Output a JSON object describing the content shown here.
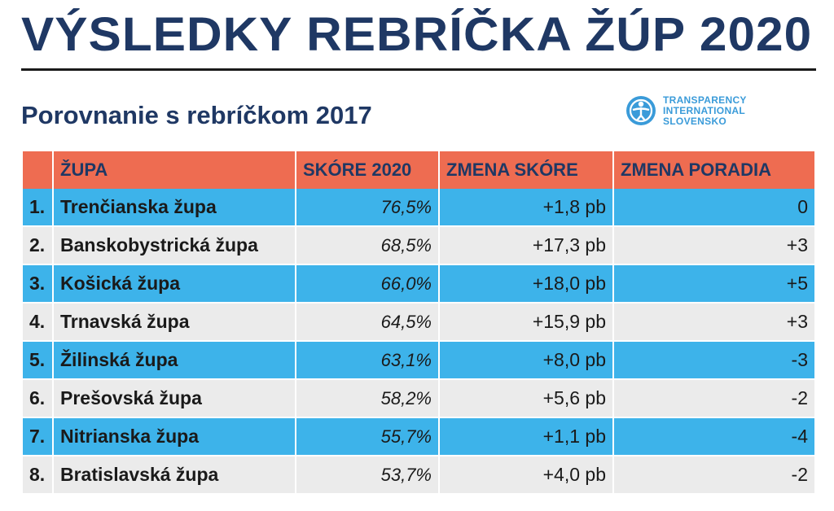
{
  "header": {
    "title": "VÝSLEDKY REBRÍČKA ŽÚP 2020",
    "subtitle": "Porovnanie s rebríčkom 2017"
  },
  "logo": {
    "icon": "transparency-international-logo-icon",
    "lines": [
      "TRANSPARENCY",
      "INTERNATIONAL",
      "SLOVENSKO"
    ]
  },
  "table": {
    "columns": [
      "",
      "ŽUPA",
      "SKÓRE 2020",
      "ZMENA SKÓRE",
      "ZMENA PORADIA"
    ],
    "rows": [
      {
        "rank": "1.",
        "name": "Trenčianska župa",
        "score": "76,5%",
        "score_change": "+1,8 pb",
        "rank_change": "0"
      },
      {
        "rank": "2.",
        "name": "Banskobystrická župa",
        "score": "68,5%",
        "score_change": "+17,3 pb",
        "rank_change": "+3"
      },
      {
        "rank": "3.",
        "name": "Košická župa",
        "score": "66,0%",
        "score_change": "+18,0 pb",
        "rank_change": "+5"
      },
      {
        "rank": "4.",
        "name": "Trnavská župa",
        "score": "64,5%",
        "score_change": "+15,9 pb",
        "rank_change": "+3"
      },
      {
        "rank": "5.",
        "name": "Žilinská župa",
        "score": "63,1%",
        "score_change": "+8,0 pb",
        "rank_change": "-3"
      },
      {
        "rank": "6.",
        "name": "Prešovská župa",
        "score": "58,2%",
        "score_change": "+5,6 pb",
        "rank_change": "-2"
      },
      {
        "rank": "7.",
        "name": "Nitrianska župa",
        "score": "55,7%",
        "score_change": "+1,1 pb",
        "rank_change": "-4"
      },
      {
        "rank": "8.",
        "name": "Bratislavská župa",
        "score": "53,7%",
        "score_change": "+4,0 pb",
        "rank_change": "-2"
      }
    ]
  },
  "colors": {
    "title": "#1f3864",
    "header_row": "#ee6c51",
    "row_blue": "#3db3ea",
    "row_gray": "#ebebeb",
    "logo": "#3a9bd9"
  }
}
